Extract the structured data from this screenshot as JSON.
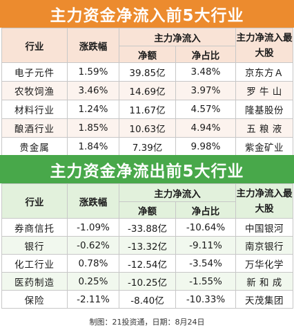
{
  "inflow": {
    "title": "主力资金净流入前5大行业",
    "headers": {
      "industry": "行业",
      "change": "涨跌幅",
      "group": "主力净流入",
      "amount": "净额",
      "ratio": "净占比",
      "top_stock": "主力净流入最大股"
    },
    "rows": [
      {
        "industry": "电子元件",
        "change": "1.59%",
        "amount": "39.85亿",
        "ratio": "3.48%",
        "stock": "京东方Ａ"
      },
      {
        "industry": "农牧饲渔",
        "change": "3.46%",
        "amount": "14.69亿",
        "ratio": "3.97%",
        "stock": "罗 牛 山"
      },
      {
        "industry": "材料行业",
        "change": "1.24%",
        "amount": "11.67亿",
        "ratio": "4.57%",
        "stock": "隆基股份"
      },
      {
        "industry": "酿酒行业",
        "change": "1.85%",
        "amount": "10.63亿",
        "ratio": "4.94%",
        "stock": "五 粮 液"
      },
      {
        "industry": "贵金属",
        "change": "1.84%",
        "amount": "7.39亿",
        "ratio": "9.98%",
        "stock": "紫金矿业"
      }
    ]
  },
  "outflow": {
    "title": "主力资金净流出前5大行业",
    "headers": {
      "industry": "行业",
      "change": "涨跌幅",
      "group": "主力净流入",
      "amount": "净额",
      "ratio": "净占比",
      "top_stock": "主力净流入最大股"
    },
    "rows": [
      {
        "industry": "券商信托",
        "change": "-1.09%",
        "amount": "-33.88亿",
        "ratio": "-10.64%",
        "stock": "中国银河"
      },
      {
        "industry": "银行",
        "change": "-0.62%",
        "amount": "-13.32亿",
        "ratio": "-9.11%",
        "stock": "南京银行"
      },
      {
        "industry": "化工行业",
        "change": "0.78%",
        "amount": "-12.54亿",
        "ratio": "-3.54%",
        "stock": "万华化学"
      },
      {
        "industry": "医药制造",
        "change": "0.25%",
        "amount": "-10.25亿",
        "ratio": "-1.55%",
        "stock": "新 和 成"
      },
      {
        "industry": "保险",
        "change": "-2.11%",
        "amount": "-8.40亿",
        "ratio": "-10.33%",
        "stock": "天茂集团"
      }
    ]
  },
  "footer": "制图：21投资通，日期：8月24日"
}
